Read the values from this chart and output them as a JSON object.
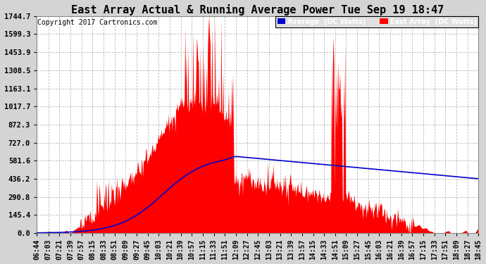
{
  "title": "East Array Actual & Running Average Power Tue Sep 19 18:47",
  "copyright": "Copyright 2017 Cartronics.com",
  "legend_avg": "Average  (DC Watts)",
  "legend_east": "East Array  (DC Watts)",
  "yticks": [
    0.0,
    145.4,
    290.8,
    436.2,
    581.6,
    727.0,
    872.3,
    1017.7,
    1163.1,
    1308.5,
    1453.9,
    1599.3,
    1744.7
  ],
  "ymax": 1744.7,
  "ymin": 0.0,
  "background_color": "#d4d4d4",
  "plot_bg_color": "#ffffff",
  "grid_color": "#aaaaaa",
  "red_color": "#ff0000",
  "blue_color": "#0000cc",
  "title_fontsize": 11,
  "tick_fontsize": 7.5,
  "copyright_fontsize": 7
}
